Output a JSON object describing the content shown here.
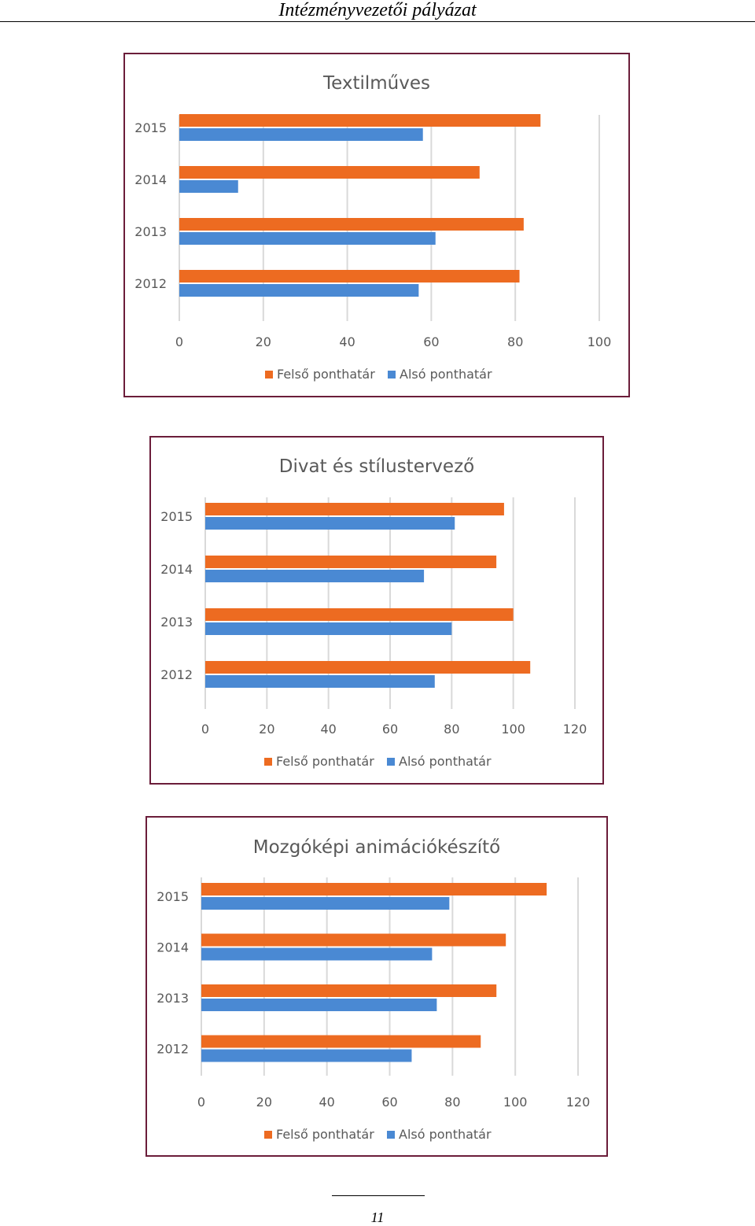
{
  "header": {
    "title": "Intézményvezetői  pályázat"
  },
  "colors": {
    "upper": "#ED6B21",
    "lower": "#4A89D3",
    "grid": "#D9D9D9",
    "frame": "#6B1D3A"
  },
  "chart_data": [
    {
      "type": "bar",
      "orientation": "horizontal",
      "title": "Textilműves",
      "categories": [
        "2015",
        "2014",
        "2013",
        "2012"
      ],
      "series": [
        {
          "name": "Felső ponthatár",
          "values": [
            86,
            71.5,
            82,
            81
          ]
        },
        {
          "name": "Alsó ponthatár",
          "values": [
            58,
            14,
            61,
            57
          ]
        }
      ],
      "xlim": [
        0,
        100
      ],
      "xticks": [
        0,
        20,
        40,
        60,
        80,
        100
      ],
      "grid": true,
      "legend": "bottom"
    },
    {
      "type": "bar",
      "orientation": "horizontal",
      "title": "Divat és stílustervező",
      "categories": [
        "2015",
        "2014",
        "2013",
        "2012"
      ],
      "series": [
        {
          "name": "Felső ponthatár",
          "values": [
            97,
            94.5,
            100,
            105.5
          ]
        },
        {
          "name": "Alsó ponthatár",
          "values": [
            81,
            71,
            80,
            74.5
          ]
        }
      ],
      "xlim": [
        0,
        120
      ],
      "xticks": [
        0,
        20,
        40,
        60,
        80,
        100,
        120
      ],
      "grid": true,
      "legend": "bottom"
    },
    {
      "type": "bar",
      "orientation": "horizontal",
      "title": "Mozgóképi animációkészítő",
      "categories": [
        "2015",
        "2014",
        "2013",
        "2012"
      ],
      "series": [
        {
          "name": "Felső ponthatár",
          "values": [
            110,
            97,
            94,
            89
          ]
        },
        {
          "name": "Alsó ponthatár",
          "values": [
            79,
            73.5,
            75,
            67
          ]
        }
      ],
      "xlim": [
        0,
        120
      ],
      "xticks": [
        0,
        20,
        40,
        60,
        80,
        100,
        120
      ],
      "grid": true,
      "legend": "bottom"
    }
  ],
  "footer": {
    "page_number": "11"
  }
}
